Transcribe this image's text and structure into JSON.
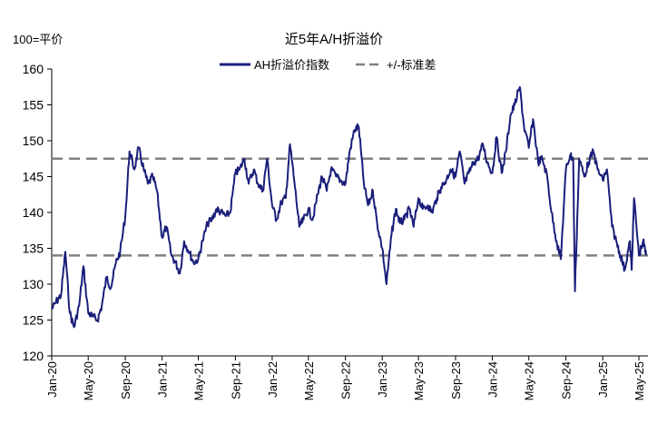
{
  "chart_data": {
    "type": "line",
    "title": "近5年A/H折溢价",
    "unit_label": "100=平价",
    "ylim": [
      120,
      160
    ],
    "yticks": [
      120,
      125,
      130,
      135,
      140,
      145,
      150,
      155,
      160
    ],
    "xlim": [
      "2020-01-01",
      "2025-05-31"
    ],
    "xtick_labels": [
      "Jan-20",
      "May-20",
      "Sep-20",
      "Jan-21",
      "May-21",
      "Sep-21",
      "Jan-22",
      "May-22",
      "Sep-22",
      "Jan-23",
      "May-23",
      "Sep-23",
      "Jan-24",
      "May-24",
      "Sep-24",
      "Jan-25",
      "May-25"
    ],
    "xtick_dates": [
      "2020-01-01",
      "2020-05-01",
      "2020-09-01",
      "2021-01-01",
      "2021-05-01",
      "2021-09-01",
      "2022-01-01",
      "2022-05-01",
      "2022-09-01",
      "2023-01-01",
      "2023-05-01",
      "2023-09-01",
      "2024-01-01",
      "2024-05-01",
      "2024-09-01",
      "2025-01-01",
      "2025-05-01"
    ],
    "grid": false,
    "legend_position": "top-center",
    "series": [
      {
        "name": "AH折溢价指数",
        "color": "#1a1f7a",
        "style": "solid",
        "x": [
          "2020-01-01",
          "2020-01-15",
          "2020-02-01",
          "2020-02-15",
          "2020-03-01",
          "2020-03-15",
          "2020-04-01",
          "2020-04-15",
          "2020-05-01",
          "2020-05-15",
          "2020-06-01",
          "2020-06-15",
          "2020-07-01",
          "2020-07-15",
          "2020-08-01",
          "2020-08-15",
          "2020-09-01",
          "2020-09-15",
          "2020-10-01",
          "2020-10-15",
          "2020-11-01",
          "2020-11-15",
          "2020-12-01",
          "2020-12-15",
          "2021-01-01",
          "2021-01-15",
          "2021-02-01",
          "2021-02-15",
          "2021-03-01",
          "2021-03-15",
          "2021-04-01",
          "2021-04-15",
          "2021-05-01",
          "2021-05-15",
          "2021-06-01",
          "2021-06-15",
          "2021-07-01",
          "2021-07-15",
          "2021-08-01",
          "2021-08-15",
          "2021-09-01",
          "2021-09-15",
          "2021-10-01",
          "2021-10-15",
          "2021-11-01",
          "2021-11-15",
          "2021-12-01",
          "2021-12-15",
          "2022-01-01",
          "2022-01-15",
          "2022-02-01",
          "2022-02-15",
          "2022-03-01",
          "2022-03-15",
          "2022-04-01",
          "2022-04-15",
          "2022-05-01",
          "2022-05-15",
          "2022-06-01",
          "2022-06-15",
          "2022-07-01",
          "2022-07-15",
          "2022-08-01",
          "2022-08-15",
          "2022-09-01",
          "2022-09-15",
          "2022-10-01",
          "2022-10-15",
          "2022-11-01",
          "2022-11-15",
          "2022-12-01",
          "2022-12-15",
          "2023-01-01",
          "2023-01-15",
          "2023-02-01",
          "2023-02-15",
          "2023-03-01",
          "2023-03-15",
          "2023-04-01",
          "2023-04-15",
          "2023-05-01",
          "2023-05-15",
          "2023-06-01",
          "2023-06-15",
          "2023-07-01",
          "2023-07-15",
          "2023-08-01",
          "2023-08-15",
          "2023-09-01",
          "2023-09-15",
          "2023-10-01",
          "2023-10-15",
          "2023-11-01",
          "2023-11-15",
          "2023-12-01",
          "2023-12-15",
          "2024-01-01",
          "2024-01-15",
          "2024-02-01",
          "2024-02-15",
          "2024-03-01",
          "2024-03-15",
          "2024-04-01",
          "2024-04-15",
          "2024-05-01",
          "2024-05-15",
          "2024-06-01",
          "2024-06-15",
          "2024-07-01",
          "2024-07-15",
          "2024-08-01",
          "2024-08-15",
          "2024-09-01",
          "2024-09-15",
          "2024-09-25",
          "2024-10-01",
          "2024-10-15",
          "2024-11-01",
          "2024-11-15",
          "2024-12-01",
          "2024-12-15",
          "2025-01-01",
          "2025-01-15",
          "2025-02-01",
          "2025-02-15",
          "2025-03-01",
          "2025-03-15",
          "2025-04-01",
          "2025-04-07",
          "2025-04-15",
          "2025-05-01",
          "2025-05-15",
          "2025-05-25"
        ],
        "values": [
          126.5,
          127.5,
          128.5,
          134.5,
          126,
          124,
          127,
          132.5,
          126,
          125.5,
          125,
          127,
          131,
          129.5,
          133,
          134.5,
          139.5,
          148.5,
          146,
          149,
          146,
          144,
          145,
          143,
          136.5,
          138,
          134,
          133,
          131.5,
          136,
          134.5,
          133,
          133.5,
          136,
          138.5,
          139,
          140.5,
          140,
          139.5,
          140,
          145.5,
          146,
          147.5,
          144,
          146,
          144,
          143,
          147.5,
          141,
          139,
          141.5,
          142,
          149.5,
          144.5,
          138,
          139,
          140.5,
          139,
          142.5,
          145,
          143,
          146,
          145,
          144.5,
          144,
          148.5,
          151.5,
          152,
          144,
          141,
          143,
          138.5,
          135,
          130,
          137,
          140.5,
          138.5,
          139,
          140.5,
          138,
          142,
          140.5,
          141,
          140,
          142,
          143.5,
          144.5,
          146,
          145,
          148.5,
          144,
          145.5,
          147,
          147.5,
          149.5,
          147,
          145.5,
          150.5,
          145.5,
          148.5,
          153.5,
          155,
          157.5,
          152,
          149,
          153,
          147,
          147.5,
          145,
          140,
          136,
          133.5,
          146,
          148,
          147.5,
          129,
          147.5,
          145,
          147,
          148.5,
          146,
          144.5,
          146,
          138,
          136,
          134,
          132,
          136,
          132,
          142,
          134,
          136,
          134
        ]
      },
      {
        "name": "+/-标准差",
        "color": "#808080",
        "style": "dashed",
        "values": [
          147.5,
          134
        ]
      }
    ]
  }
}
